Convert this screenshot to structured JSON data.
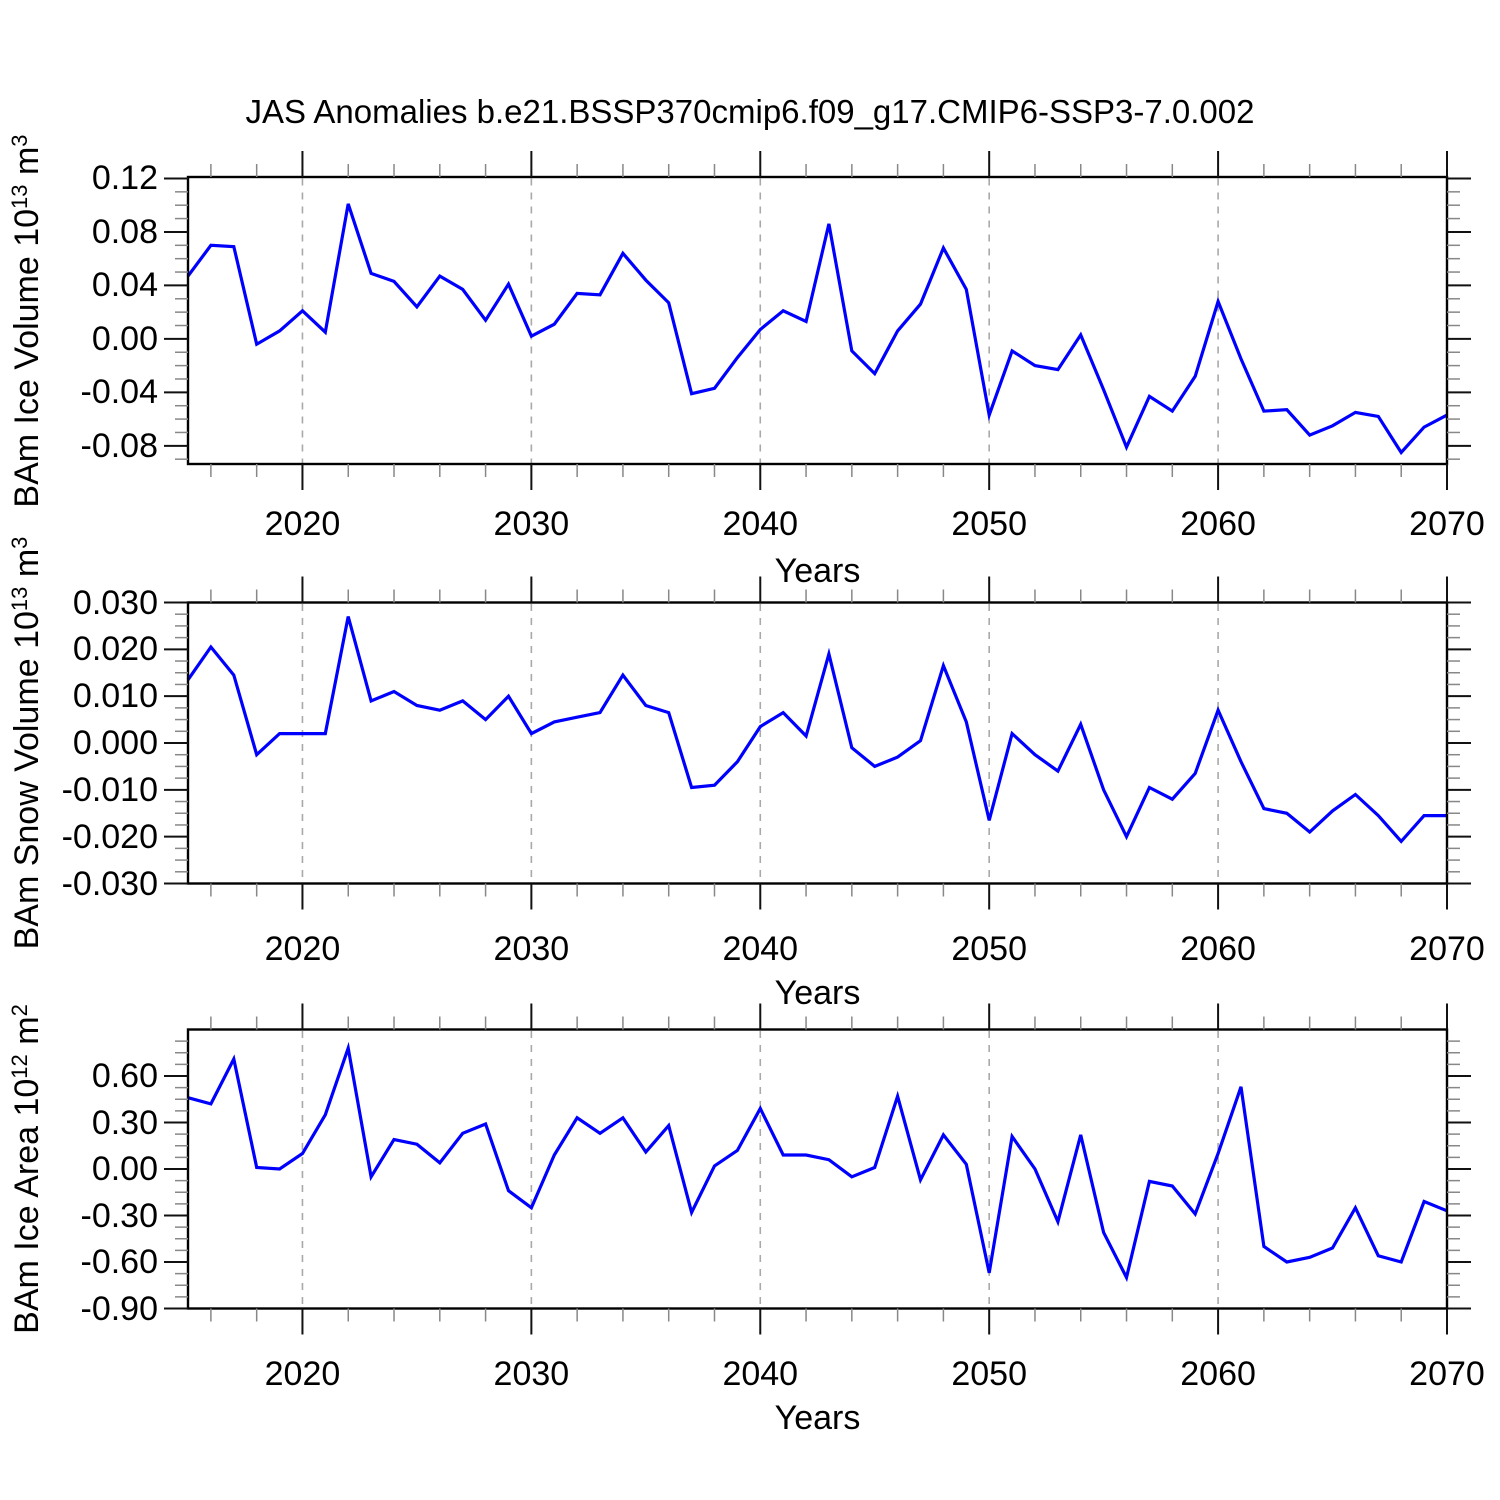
{
  "title": "JAS Anomalies b.e21.BSSP370cmip6.f09_g17.CMIP6-SSP3-7.0.002",
  "colors": {
    "line": "#0000ff",
    "grid": "#a9a9a9",
    "frame": "#000000",
    "major_tick": "#111111",
    "minor_tick": "#888888"
  },
  "years": [
    2015,
    2016,
    2017,
    2018,
    2019,
    2020,
    2021,
    2022,
    2023,
    2024,
    2025,
    2026,
    2027,
    2028,
    2029,
    2030,
    2031,
    2032,
    2033,
    2034,
    2035,
    2036,
    2037,
    2038,
    2039,
    2040,
    2041,
    2042,
    2043,
    2044,
    2045,
    2046,
    2047,
    2048,
    2049,
    2050,
    2051,
    2052,
    2053,
    2054,
    2055,
    2056,
    2057,
    2058,
    2059,
    2060,
    2061,
    2062,
    2063,
    2064,
    2065,
    2066,
    2067,
    2068,
    2069,
    2070
  ],
  "xlabel": "Years",
  "x_ticks": {
    "labels": [
      "2020",
      "2030",
      "2040",
      "2050",
      "2060",
      "2070"
    ],
    "values": [
      2020,
      2030,
      2040,
      2050,
      2060,
      2070
    ]
  },
  "x_minor_step": 2,
  "grid_years": [
    2020,
    2030,
    2040,
    2050,
    2060
  ],
  "xlim": [
    2015,
    2070
  ],
  "chart_data": [
    {
      "type": "line",
      "name": "bam-ice-volume",
      "ylabel_text": "BAm Ice Volume 10^13 m^3",
      "ylabel_parts": [
        {
          "t": "BAm Ice Volume 10"
        },
        {
          "t": "13",
          "sup": true
        },
        {
          "t": " m"
        },
        {
          "t": "3",
          "sup": true
        }
      ],
      "xlabel": "Years",
      "ylim": [
        -0.0936,
        0.1211
      ],
      "yticks": {
        "labels": [
          "0.12",
          "0.08",
          "0.04",
          "0.00",
          "-0.04",
          "-0.08"
        ],
        "values": [
          0.12,
          0.08,
          0.04,
          0.0,
          -0.04,
          -0.08
        ]
      },
      "y_minor_step": 0.01,
      "grid": "vertical-dashed",
      "legend": "none",
      "values": [
        0.047,
        0.07,
        0.069,
        -0.004,
        0.006,
        0.021,
        0.005,
        0.101,
        0.049,
        0.043,
        0.024,
        0.047,
        0.037,
        0.014,
        0.041,
        0.002,
        0.011,
        0.034,
        0.033,
        0.064,
        0.044,
        0.027,
        -0.041,
        -0.037,
        -0.014,
        0.007,
        0.021,
        0.013,
        0.086,
        -0.009,
        -0.026,
        0.006,
        0.026,
        0.068,
        0.037,
        -0.057,
        -0.009,
        -0.02,
        -0.023,
        0.003,
        -0.038,
        -0.081,
        -0.043,
        -0.054,
        -0.028,
        0.028,
        -0.015,
        -0.054,
        -0.053,
        -0.072,
        -0.065,
        -0.055,
        -0.058,
        -0.085,
        -0.066,
        -0.057
      ]
    },
    {
      "type": "line",
      "name": "bam-snow-volume",
      "ylabel_text": "BAm Snow Volume 10^13 m^3",
      "ylabel_parts": [
        {
          "t": "BAm Snow Volume 10"
        },
        {
          "t": "13",
          "sup": true
        },
        {
          "t": " m"
        },
        {
          "t": "3",
          "sup": true
        }
      ],
      "xlabel": "Years",
      "ylim": [
        -0.03,
        0.03
      ],
      "yticks": {
        "labels": [
          "0.030",
          "0.020",
          "0.010",
          "0.000",
          "-0.010",
          "-0.020",
          "-0.030"
        ],
        "values": [
          0.03,
          0.02,
          0.01,
          0.0,
          -0.01,
          -0.02,
          -0.03
        ]
      },
      "y_minor_step": 0.0025,
      "grid": "vertical-dashed",
      "legend": "none",
      "values": [
        0.0135,
        0.0205,
        0.0145,
        -0.0025,
        0.002,
        0.002,
        0.002,
        0.027,
        0.009,
        0.011,
        0.008,
        0.007,
        0.009,
        0.005,
        0.01,
        0.002,
        0.0045,
        0.0055,
        0.0065,
        0.0145,
        0.008,
        0.0065,
        -0.0095,
        -0.009,
        -0.004,
        0.0035,
        0.0065,
        0.0015,
        0.019,
        -0.001,
        -0.005,
        -0.003,
        0.0005,
        0.0165,
        0.0045,
        -0.0165,
        0.002,
        -0.0025,
        -0.006,
        0.004,
        -0.01,
        -0.02,
        -0.0095,
        -0.012,
        -0.0065,
        0.007,
        -0.004,
        -0.014,
        -0.015,
        -0.019,
        -0.0145,
        -0.011,
        -0.0155,
        -0.021,
        -0.0155,
        -0.0155
      ]
    },
    {
      "type": "line",
      "name": "bam-ice-area",
      "ylabel_text": "BAm Ice Area 10^12 m^2",
      "ylabel_parts": [
        {
          "t": "BAm Ice Area 10"
        },
        {
          "t": "12",
          "sup": true
        },
        {
          "t": " m"
        },
        {
          "t": "2",
          "sup": true
        }
      ],
      "xlabel": "Years",
      "ylim": [
        -0.9,
        0.9
      ],
      "yticks": {
        "labels": [
          "0.60",
          "0.30",
          "0.00",
          "-0.30",
          "-0.60",
          "-0.90"
        ],
        "values": [
          0.6,
          0.3,
          0.0,
          -0.3,
          -0.6,
          -0.9
        ]
      },
      "y_minor_step": 0.075,
      "grid": "vertical-dashed",
      "legend": "none",
      "values": [
        0.46,
        0.42,
        0.71,
        0.01,
        0.0,
        0.1,
        0.35,
        0.78,
        -0.05,
        0.19,
        0.16,
        0.04,
        0.23,
        0.29,
        -0.14,
        -0.25,
        0.09,
        0.33,
        0.23,
        0.33,
        0.11,
        0.28,
        -0.28,
        0.02,
        0.12,
        0.39,
        0.09,
        0.09,
        0.06,
        -0.05,
        0.01,
        0.47,
        -0.07,
        0.22,
        0.03,
        -0.67,
        0.21,
        0.0,
        -0.34,
        0.22,
        -0.41,
        -0.7,
        -0.08,
        -0.11,
        -0.29,
        0.1,
        0.53,
        -0.5,
        -0.6,
        -0.57,
        -0.51,
        -0.25,
        -0.56,
        -0.6,
        -0.21,
        -0.27
      ]
    }
  ]
}
